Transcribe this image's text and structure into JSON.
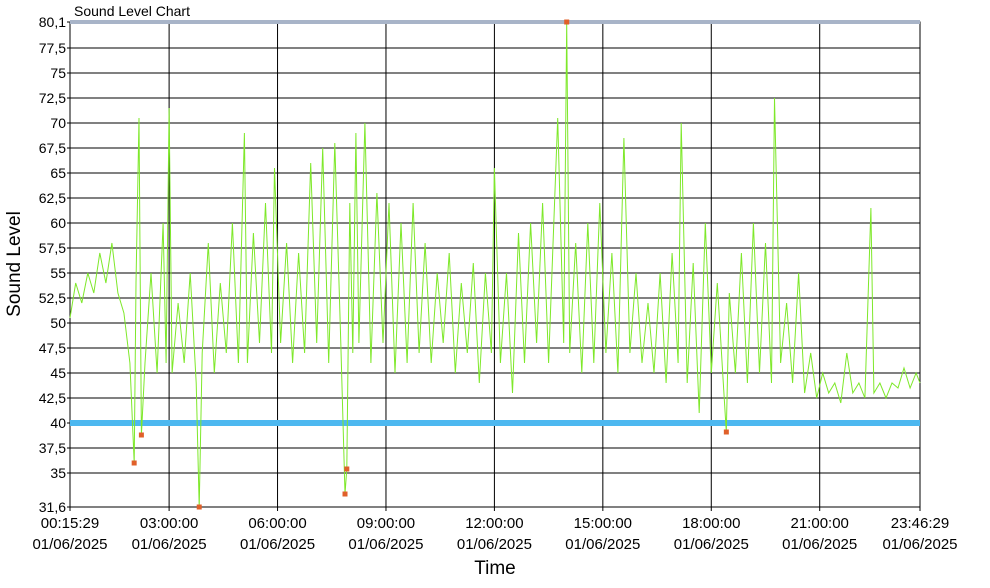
{
  "chart_data": {
    "type": "line",
    "title": "Sound Level Chart",
    "xlabel": "Time",
    "ylabel": "Sound Level",
    "x": [
      "00:15:29",
      "00:25:00",
      "00:35:00",
      "00:45:00",
      "00:55:00",
      "01:05:00",
      "01:15:00",
      "01:25:00",
      "01:35:00",
      "01:45:00",
      "01:55:00",
      "02:02:00",
      "02:05:00",
      "02:10:00",
      "02:14:00",
      "02:20:00",
      "02:30:00",
      "02:40:00",
      "02:50:00",
      "02:55:00",
      "03:00:00",
      "03:05:00",
      "03:15:00",
      "03:25:00",
      "03:35:00",
      "03:45:00",
      "03:50:00",
      "03:55:00",
      "04:05:00",
      "04:15:00",
      "04:25:00",
      "04:35:00",
      "04:45:00",
      "04:55:00",
      "05:05:00",
      "05:10:00",
      "05:20:00",
      "05:30:00",
      "05:40:00",
      "05:50:00",
      "05:55:00",
      "06:05:00",
      "06:15:00",
      "06:25:00",
      "06:35:00",
      "06:45:00",
      "06:55:00",
      "07:05:00",
      "07:15:00",
      "07:25:00",
      "07:35:00",
      "07:45:00",
      "07:52:00",
      "07:55:00",
      "08:00:00",
      "08:05:00",
      "08:10:00",
      "08:15:00",
      "08:25:00",
      "08:35:00",
      "08:45:00",
      "08:55:00",
      "09:05:00",
      "09:15:00",
      "09:25:00",
      "09:35:00",
      "09:45:00",
      "09:55:00",
      "10:05:00",
      "10:15:00",
      "10:25:00",
      "10:35:00",
      "10:45:00",
      "10:55:00",
      "11:05:00",
      "11:15:00",
      "11:25:00",
      "11:35:00",
      "11:45:00",
      "11:55:00",
      "12:00:00",
      "12:10:00",
      "12:20:00",
      "12:30:00",
      "12:40:00",
      "12:50:00",
      "13:00:00",
      "13:10:00",
      "13:20:00",
      "13:30:00",
      "13:45:00",
      "13:55:00",
      "14:00:00",
      "14:05:00",
      "14:15:00",
      "14:25:00",
      "14:35:00",
      "14:45:00",
      "14:55:00",
      "15:05:00",
      "15:15:00",
      "15:25:00",
      "15:35:00",
      "15:45:00",
      "15:55:00",
      "16:05:00",
      "16:15:00",
      "16:25:00",
      "16:35:00",
      "16:45:00",
      "16:55:00",
      "17:05:00",
      "17:10:00",
      "17:20:00",
      "17:30:00",
      "17:40:00",
      "17:50:00",
      "18:00:00",
      "18:10:00",
      "18:20:00",
      "18:25:00",
      "18:30:00",
      "18:40:00",
      "18:50:00",
      "19:00:00",
      "19:10:00",
      "19:20:00",
      "19:30:00",
      "19:40:00",
      "19:45:00",
      "19:55:00",
      "20:05:00",
      "20:15:00",
      "20:25:00",
      "20:35:00",
      "20:45:00",
      "20:55:00",
      "21:05:00",
      "21:15:00",
      "21:25:00",
      "21:35:00",
      "21:45:00",
      "21:55:00",
      "22:05:00",
      "22:15:00",
      "22:25:00",
      "22:30:00",
      "22:40:00",
      "22:50:00",
      "23:00:00",
      "23:10:00",
      "23:20:00",
      "23:30:00",
      "23:40:00",
      "23:46:29"
    ],
    "series": [
      {
        "color": "#7ee82a",
        "values": [
          50.5,
          54,
          52,
          55,
          53,
          57,
          54,
          58,
          53,
          51,
          46,
          36,
          54,
          70.5,
          38.8,
          46,
          55,
          45,
          60,
          46,
          71.5,
          45,
          52,
          46,
          55,
          44,
          31.6,
          47,
          58,
          45,
          54,
          47,
          60,
          46,
          69,
          46,
          59,
          48,
          62,
          47,
          65.5,
          48,
          58,
          46,
          57,
          47,
          66,
          48,
          67.5,
          46,
          68,
          48,
          32.9,
          35.4,
          62,
          47,
          69,
          48,
          70,
          46,
          63,
          48,
          62,
          45,
          60,
          46,
          62,
          47,
          58,
          46,
          55,
          48,
          57,
          45,
          54,
          47,
          56,
          44,
          55,
          47,
          65.5,
          46,
          55,
          43,
          59,
          46,
          60,
          48,
          62,
          46,
          70.5,
          48,
          80.1,
          47,
          58,
          45,
          60,
          46,
          62,
          47,
          57,
          45,
          68.5,
          47,
          55,
          46,
          52,
          45,
          55,
          44,
          57,
          46,
          70,
          44,
          56,
          41,
          60,
          45,
          54,
          44,
          39.1,
          53,
          45,
          57,
          44,
          60,
          45,
          58,
          44,
          72.5,
          46,
          52,
          44,
          55,
          43,
          47,
          42.5,
          45,
          43,
          44,
          42,
          47,
          43,
          44,
          42.5,
          61.5,
          43,
          44,
          42.5,
          44,
          43.5,
          45.5,
          43.5,
          45,
          44
        ]
      }
    ],
    "alarm_markers": {
      "color": "#e0602a",
      "x": [
        "02:02:00",
        "02:14:00",
        "03:50:00",
        "07:52:00",
        "07:55:00",
        "14:00:00",
        "18:25:00"
      ],
      "values": [
        36,
        38.8,
        31.6,
        32.9,
        35.4,
        80.1,
        39.1
      ]
    },
    "threshold": {
      "value": 40,
      "color": "#4db8f0"
    },
    "xlim": [
      "00:15:29",
      "23:46:29"
    ],
    "xticks": [
      {
        "time": "00:15:29",
        "date": "01/06/2025"
      },
      {
        "time": "03:00:00",
        "date": "01/06/2025"
      },
      {
        "time": "06:00:00",
        "date": "01/06/2025"
      },
      {
        "time": "09:00:00",
        "date": "01/06/2025"
      },
      {
        "time": "12:00:00",
        "date": "01/06/2025"
      },
      {
        "time": "15:00:00",
        "date": "01/06/2025"
      },
      {
        "time": "18:00:00",
        "date": "01/06/2025"
      },
      {
        "time": "21:00:00",
        "date": "01/06/2025"
      },
      {
        "time": "23:46:29",
        "date": "01/06/2025"
      }
    ],
    "ylim": [
      31.6,
      80.1
    ],
    "yticks": [
      {
        "value": 31.6,
        "label": "31,6"
      },
      35,
      {
        "value": 37.5,
        "label": "37,5"
      },
      40,
      {
        "value": 42.5,
        "label": "42,5"
      },
      45,
      {
        "value": 47.5,
        "label": "47,5"
      },
      50,
      {
        "value": 52.5,
        "label": "52,5"
      },
      55,
      {
        "value": 57.5,
        "label": "57,5"
      },
      60,
      {
        "value": 62.5,
        "label": "62,5"
      },
      65,
      {
        "value": 67.5,
        "label": "67,5"
      },
      70,
      {
        "value": 72.5,
        "label": "72,5"
      },
      75,
      {
        "value": 77.5,
        "label": "77,5"
      },
      {
        "value": 80.1,
        "label": "80,1"
      }
    ],
    "grid": true
  }
}
